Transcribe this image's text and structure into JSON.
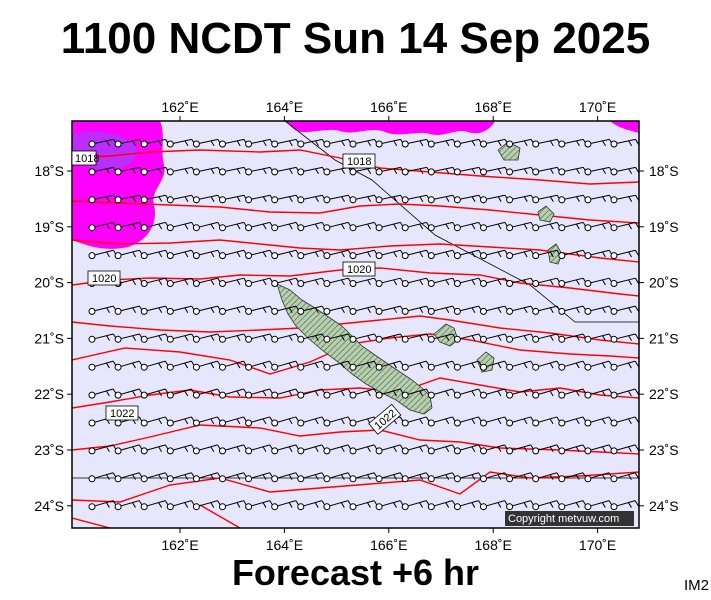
{
  "header": {
    "title": "1100 NCDT Sun 14 Sep 2025"
  },
  "footer": {
    "subtitle": "Forecast +6 hr",
    "image_code": "IM2"
  },
  "copyright": "Copyright metvuw.com",
  "map": {
    "lon_ticks": [
      {
        "value": 162,
        "label": "162˚E"
      },
      {
        "value": 164,
        "label": "164˚E"
      },
      {
        "value": 166,
        "label": "166˚E"
      },
      {
        "value": 168,
        "label": "168˚E"
      },
      {
        "value": 170,
        "label": "170˚E"
      }
    ],
    "lat_ticks": [
      {
        "value": -18,
        "label": "18˚S"
      },
      {
        "value": -19,
        "label": "19˚S"
      },
      {
        "value": -20,
        "label": "20˚S"
      },
      {
        "value": -21,
        "label": "21˚S"
      },
      {
        "value": -22,
        "label": "22˚S"
      },
      {
        "value": -23,
        "label": "23˚S"
      },
      {
        "value": -24,
        "label": "24˚S"
      }
    ],
    "isobar_labels": [
      "1018",
      "1018",
      "1020",
      "1020",
      "1022",
      "1022"
    ],
    "colors": {
      "ocean": "#e6e6fc",
      "rain_heavy": "#ff00ff",
      "rain_core": "#a040ff",
      "isobar": "#ff0000",
      "land": "#b8d0b0",
      "wind": "#000000"
    }
  }
}
